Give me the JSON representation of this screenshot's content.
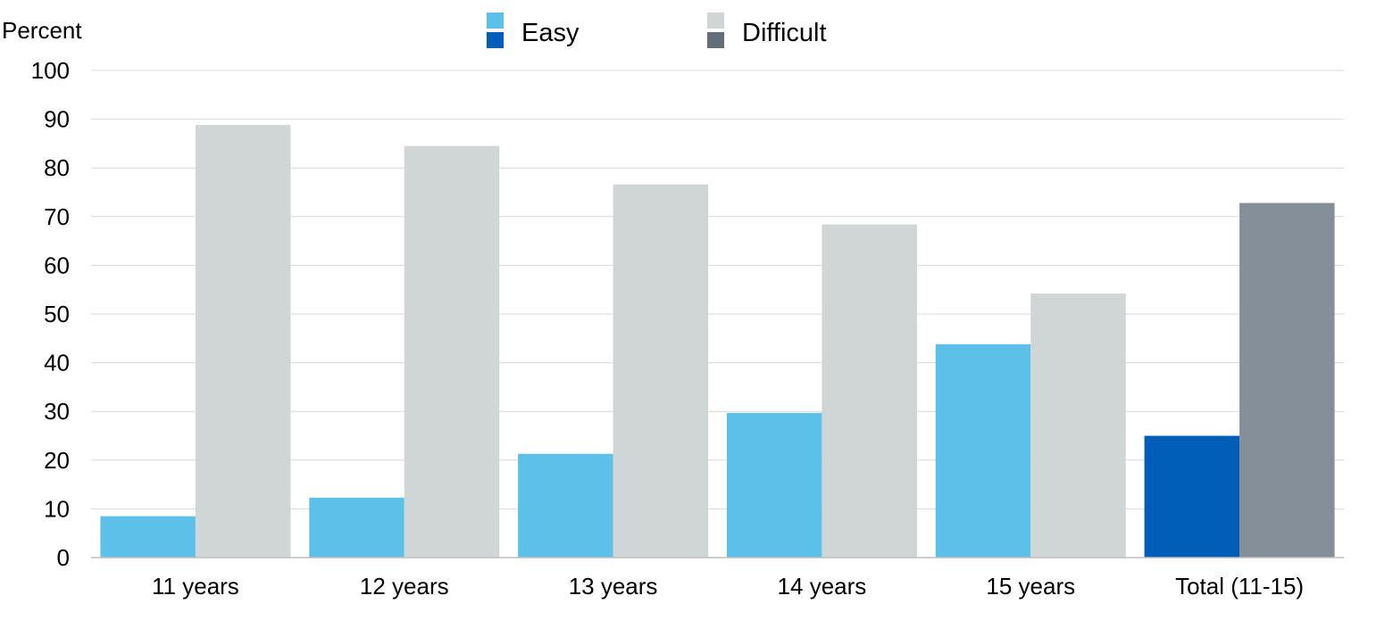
{
  "chart_data": {
    "type": "bar",
    "ylabel": "Percent",
    "ylim": [
      0,
      100
    ],
    "yticks": [
      0,
      10,
      20,
      30,
      40,
      50,
      60,
      70,
      80,
      90,
      100
    ],
    "categories": [
      "11 years",
      "12 years",
      "13 years",
      "14 years",
      "15 years",
      "Total (11-15)"
    ],
    "series": [
      {
        "name": "Easy",
        "values": [
          8.5,
          12.3,
          21.3,
          29.7,
          43.8,
          25.0
        ]
      },
      {
        "name": "Difficult",
        "values": [
          88.8,
          84.5,
          76.6,
          68.4,
          54.2,
          72.8
        ]
      }
    ],
    "legend": {
      "position": "top-center",
      "items": [
        {
          "label": "Easy",
          "colors": [
            "#5dc0e9",
            "#005eb8"
          ]
        },
        {
          "label": "Difficult",
          "colors": [
            "#d0d5d5",
            "#636e7a"
          ]
        }
      ]
    },
    "colors": {
      "easy": "#5dc0e9",
      "difficult": "#d0d5d5",
      "easy_total": "#005eb8",
      "difficult_total": "#858f9a"
    },
    "grid": true
  }
}
